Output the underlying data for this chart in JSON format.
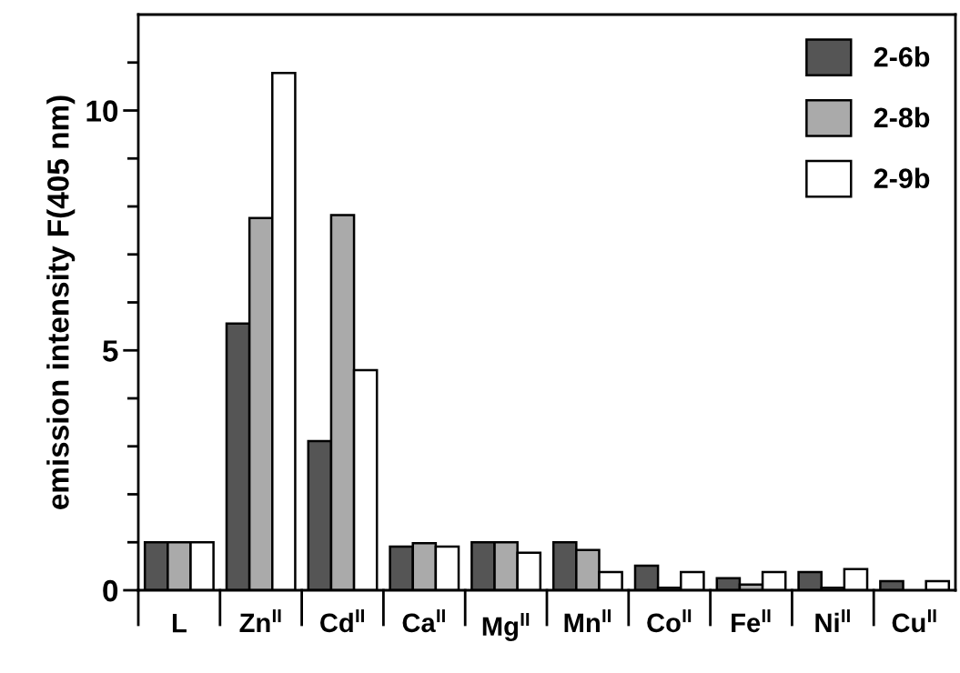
{
  "chart_data": {
    "type": "bar",
    "ylabel": "emission intensity F(405 nm)",
    "categories": [
      "L",
      "Zn$^{II}$",
      "Cd$^{II}$",
      "Ca$^{II}$",
      "Mg$^{II}$",
      "Mn$^{II}$",
      "Co$^{II}$",
      "Fe$^{II}$",
      "Ni$^{II}$",
      "Cu$^{II}$"
    ],
    "series": [
      {
        "name": "2-6b",
        "color": "#555555",
        "values": [
          1.0,
          5.56,
          3.11,
          0.91,
          1.0,
          1.0,
          0.51,
          0.25,
          0.38,
          0.19
        ]
      },
      {
        "name": "2-8b",
        "color": "#aaaaaa",
        "values": [
          1.0,
          7.76,
          7.82,
          0.98,
          1.0,
          0.84,
          0.05,
          0.12,
          0.05,
          null
        ]
      },
      {
        "name": "2-9b",
        "color": "#ffffff",
        "values": [
          1.0,
          10.78,
          4.59,
          0.91,
          0.78,
          0.38,
          0.38,
          0.38,
          0.44,
          0.19
        ]
      }
    ],
    "ylim": [
      0,
      12
    ],
    "yticks": [
      0,
      {
        "value": 1,
        "label": null
      },
      {
        "value": 2,
        "label": null
      },
      {
        "value": 3,
        "label": null
      },
      {
        "value": 4,
        "label": null
      },
      5,
      {
        "value": 6,
        "label": null
      },
      {
        "value": 7,
        "label": null
      },
      {
        "value": 8,
        "label": null
      },
      {
        "value": 9,
        "label": null
      },
      10,
      {
        "value": 11,
        "label": null
      }
    ],
    "legend": "top right",
    "grid": false
  }
}
